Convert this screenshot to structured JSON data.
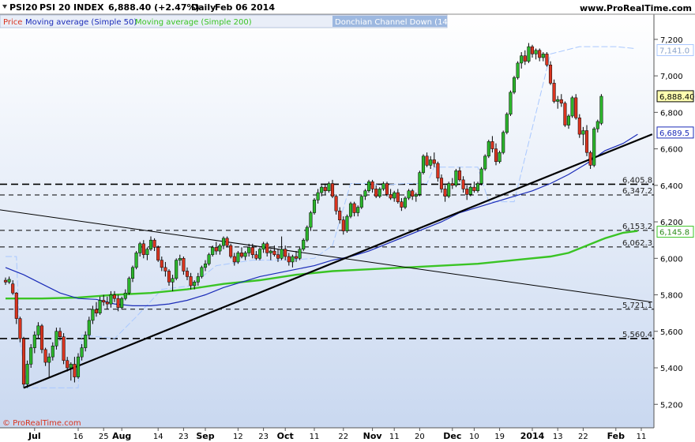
{
  "header": {
    "symbol": "PSI20",
    "name": "PSI 20 INDEX",
    "quote": "6,888.40 (+2.47%)",
    "period": "Daily",
    "date": "Feb 06 2014",
    "site": "www.ProRealTime.com",
    "copyright": "© ProRealTime.com"
  },
  "legend": {
    "price": "Price",
    "ma50": "Moving average (Simple 50)",
    "ma200": "Moving average (Simple 200)",
    "donchian": "Donchian Channel Down (14)"
  },
  "colors": {
    "up": "#2cb52c",
    "down": "#d9341f",
    "ma50": "#1a2bb8",
    "ma200": "#3ac424",
    "donchian": "#a9c8ff",
    "trend": "#000000",
    "price_box": "#ffffb0"
  },
  "chart_data": {
    "type": "candlestick",
    "ylim": [
      5080,
      7260
    ],
    "y_ticks": [
      "7,200",
      "7,000",
      "6,800",
      "6,600",
      "6,400",
      "6,200",
      "6,000",
      "5,800",
      "5,600",
      "5,400",
      "5,200"
    ],
    "x_ticks": [
      {
        "label": "Jul",
        "bar": 8,
        "bold": true
      },
      {
        "label": "16",
        "bar": 20
      },
      {
        "label": "25",
        "bar": 27
      },
      {
        "label": "Aug",
        "bar": 32,
        "bold": true
      },
      {
        "label": "14",
        "bar": 42
      },
      {
        "label": "23",
        "bar": 49
      },
      {
        "label": "Sep",
        "bar": 55,
        "bold": true
      },
      {
        "label": "12",
        "bar": 64
      },
      {
        "label": "23",
        "bar": 71
      },
      {
        "label": "Oct",
        "bar": 77,
        "bold": true
      },
      {
        "label": "11",
        "bar": 85
      },
      {
        "label": "22",
        "bar": 93
      },
      {
        "label": "Nov",
        "bar": 101,
        "bold": true
      },
      {
        "label": "11",
        "bar": 107
      },
      {
        "label": "20",
        "bar": 114
      },
      {
        "label": "Dec",
        "bar": 123,
        "bold": true
      },
      {
        "label": "10",
        "bar": 129
      },
      {
        "label": "19",
        "bar": 136
      },
      {
        "label": "2014",
        "bar": 145,
        "bold": true
      },
      {
        "label": "13",
        "bar": 152
      },
      {
        "label": "22",
        "bar": 159
      },
      {
        "label": "Feb",
        "bar": 168,
        "bold": true
      },
      {
        "label": "11",
        "bar": 175
      }
    ],
    "ohlc": [
      [
        5880,
        5895,
        5855,
        5870
      ],
      [
        5870,
        5900,
        5860,
        5885
      ],
      [
        5860,
        5880,
        5800,
        5810
      ],
      [
        5810,
        5815,
        5640,
        5670
      ],
      [
        5670,
        5680,
        5540,
        5560
      ],
      [
        5560,
        5570,
        5290,
        5310
      ],
      [
        5310,
        5440,
        5290,
        5420
      ],
      [
        5420,
        5530,
        5400,
        5510
      ],
      [
        5510,
        5600,
        5480,
        5580
      ],
      [
        5580,
        5650,
        5560,
        5630
      ],
      [
        5630,
        5640,
        5480,
        5500
      ],
      [
        5500,
        5510,
        5410,
        5430
      ],
      [
        5430,
        5480,
        5350,
        5460
      ],
      [
        5460,
        5540,
        5440,
        5520
      ],
      [
        5520,
        5620,
        5500,
        5600
      ],
      [
        5600,
        5620,
        5550,
        5570
      ],
      [
        5570,
        5590,
        5420,
        5440
      ],
      [
        5440,
        5460,
        5380,
        5400
      ],
      [
        5400,
        5430,
        5330,
        5420
      ],
      [
        5420,
        5460,
        5320,
        5350
      ],
      [
        5350,
        5480,
        5340,
        5460
      ],
      [
        5460,
        5530,
        5440,
        5510
      ],
      [
        5510,
        5600,
        5490,
        5580
      ],
      [
        5580,
        5680,
        5560,
        5660
      ],
      [
        5660,
        5740,
        5640,
        5720
      ],
      [
        5720,
        5760,
        5680,
        5700
      ],
      [
        5700,
        5790,
        5690,
        5770
      ],
      [
        5770,
        5800,
        5740,
        5760
      ],
      [
        5760,
        5790,
        5720,
        5750
      ],
      [
        5750,
        5820,
        5730,
        5800
      ],
      [
        5800,
        5820,
        5760,
        5780
      ],
      [
        5780,
        5800,
        5710,
        5730
      ],
      [
        5730,
        5790,
        5720,
        5780
      ],
      [
        5780,
        5830,
        5770,
        5810
      ],
      [
        5810,
        5900,
        5800,
        5890
      ],
      [
        5890,
        5960,
        5870,
        5950
      ],
      [
        5950,
        6040,
        5940,
        6030
      ],
      [
        6030,
        6090,
        6010,
        6080
      ],
      [
        6080,
        6100,
        6000,
        6020
      ],
      [
        6020,
        6060,
        5990,
        6050
      ],
      [
        6050,
        6120,
        6040,
        6100
      ],
      [
        6100,
        6110,
        6040,
        6060
      ],
      [
        6060,
        6070,
        5980,
        5990
      ],
      [
        5990,
        6010,
        5930,
        5950
      ],
      [
        5950,
        5980,
        5900,
        5930
      ],
      [
        5930,
        5940,
        5850,
        5870
      ],
      [
        5870,
        5910,
        5820,
        5890
      ],
      [
        5890,
        6000,
        5880,
        5990
      ],
      [
        5990,
        6020,
        5960,
        6000
      ],
      [
        6000,
        6010,
        5910,
        5930
      ],
      [
        5930,
        5950,
        5880,
        5900
      ],
      [
        5900,
        5920,
        5830,
        5850
      ],
      [
        5850,
        5880,
        5830,
        5870
      ],
      [
        5870,
        5920,
        5850,
        5900
      ],
      [
        5900,
        5960,
        5890,
        5950
      ],
      [
        5950,
        5990,
        5930,
        5970
      ],
      [
        5970,
        6030,
        5960,
        6020
      ],
      [
        6020,
        6070,
        6010,
        6060
      ],
      [
        6060,
        6090,
        6020,
        6040
      ],
      [
        6040,
        6080,
        6020,
        6070
      ],
      [
        6070,
        6120,
        6050,
        6110
      ],
      [
        6110,
        6120,
        6060,
        6070
      ],
      [
        6070,
        6080,
        6000,
        6010
      ],
      [
        6010,
        6030,
        5960,
        5980
      ],
      [
        5980,
        6040,
        5970,
        6030
      ],
      [
        6030,
        6060,
        6000,
        6010
      ],
      [
        6010,
        6040,
        5990,
        6030
      ],
      [
        6030,
        6080,
        6010,
        6060
      ],
      [
        6060,
        6080,
        6000,
        6020
      ],
      [
        6020,
        6040,
        5990,
        6000
      ],
      [
        6000,
        6060,
        5990,
        6050
      ],
      [
        6050,
        6090,
        6030,
        6080
      ],
      [
        6080,
        6090,
        6010,
        6030
      ],
      [
        6030,
        6050,
        5990,
        6040
      ],
      [
        6040,
        6070,
        6010,
        6020
      ],
      [
        6020,
        6050,
        5980,
        6000
      ],
      [
        6000,
        6120,
        5990,
        6050
      ],
      [
        6050,
        6070,
        5990,
        6010
      ],
      [
        6010,
        6030,
        5960,
        5980
      ],
      [
        5980,
        6020,
        5950,
        6010
      ],
      [
        6010,
        6040,
        5980,
        6000
      ],
      [
        6000,
        6060,
        5990,
        6050
      ],
      [
        6050,
        6110,
        6040,
        6100
      ],
      [
        6100,
        6180,
        6090,
        6170
      ],
      [
        6170,
        6260,
        6150,
        6250
      ],
      [
        6250,
        6330,
        6240,
        6320
      ],
      [
        6320,
        6380,
        6300,
        6360
      ],
      [
        6360,
        6400,
        6340,
        6390
      ],
      [
        6390,
        6410,
        6350,
        6370
      ],
      [
        6370,
        6420,
        6360,
        6410
      ],
      [
        6410,
        6430,
        6330,
        6340
      ],
      [
        6340,
        6350,
        6240,
        6260
      ],
      [
        6260,
        6280,
        6190,
        6210
      ],
      [
        6210,
        6230,
        6130,
        6150
      ],
      [
        6150,
        6240,
        6140,
        6230
      ],
      [
        6230,
        6310,
        6220,
        6300
      ],
      [
        6300,
        6310,
        6230,
        6250
      ],
      [
        6250,
        6290,
        6230,
        6280
      ],
      [
        6280,
        6350,
        6270,
        6340
      ],
      [
        6340,
        6380,
        6320,
        6370
      ],
      [
        6370,
        6430,
        6360,
        6420
      ],
      [
        6420,
        6430,
        6360,
        6380
      ],
      [
        6380,
        6400,
        6330,
        6340
      ],
      [
        6340,
        6390,
        6330,
        6380
      ],
      [
        6380,
        6420,
        6370,
        6410
      ],
      [
        6410,
        6420,
        6340,
        6350
      ],
      [
        6350,
        6380,
        6320,
        6330
      ],
      [
        6330,
        6370,
        6310,
        6360
      ],
      [
        6360,
        6380,
        6300,
        6310
      ],
      [
        6310,
        6330,
        6260,
        6280
      ],
      [
        6280,
        6340,
        6270,
        6330
      ],
      [
        6330,
        6380,
        6320,
        6370
      ],
      [
        6370,
        6380,
        6320,
        6340
      ],
      [
        6340,
        6360,
        6310,
        6350
      ],
      [
        6350,
        6480,
        6340,
        6470
      ],
      [
        6470,
        6570,
        6460,
        6560
      ],
      [
        6560,
        6580,
        6500,
        6510
      ],
      [
        6510,
        6560,
        6490,
        6540
      ],
      [
        6540,
        6580,
        6500,
        6520
      ],
      [
        6520,
        6530,
        6420,
        6440
      ],
      [
        6440,
        6460,
        6360,
        6380
      ],
      [
        6380,
        6400,
        6310,
        6340
      ],
      [
        6340,
        6420,
        6330,
        6410
      ],
      [
        6410,
        6440,
        6380,
        6400
      ],
      [
        6400,
        6490,
        6390,
        6480
      ],
      [
        6480,
        6500,
        6420,
        6430
      ],
      [
        6430,
        6450,
        6360,
        6380
      ],
      [
        6380,
        6400,
        6320,
        6350
      ],
      [
        6350,
        6400,
        6340,
        6390
      ],
      [
        6390,
        6420,
        6360,
        6370
      ],
      [
        6370,
        6420,
        6360,
        6410
      ],
      [
        6410,
        6500,
        6400,
        6490
      ],
      [
        6490,
        6570,
        6480,
        6560
      ],
      [
        6560,
        6650,
        6550,
        6640
      ],
      [
        6640,
        6670,
        6580,
        6600
      ],
      [
        6600,
        6630,
        6510,
        6530
      ],
      [
        6530,
        6590,
        6520,
        6580
      ],
      [
        6580,
        6700,
        6570,
        6690
      ],
      [
        6690,
        6800,
        6680,
        6790
      ],
      [
        6790,
        6920,
        6780,
        6910
      ],
      [
        6910,
        7000,
        6900,
        6990
      ],
      [
        6990,
        7080,
        6980,
        7070
      ],
      [
        7070,
        7130,
        7040,
        7110
      ],
      [
        7110,
        7140,
        7060,
        7080
      ],
      [
        7080,
        7180,
        7070,
        7160
      ],
      [
        7160,
        7170,
        7100,
        7120
      ],
      [
        7120,
        7150,
        7090,
        7140
      ],
      [
        7140,
        7150,
        7080,
        7100
      ],
      [
        7100,
        7130,
        7080,
        7120
      ],
      [
        7120,
        7130,
        7050,
        7060
      ],
      [
        7060,
        7080,
        6950,
        6960
      ],
      [
        6960,
        6980,
        6850,
        6860
      ],
      [
        6860,
        6890,
        6820,
        6870
      ],
      [
        6870,
        6900,
        6830,
        6850
      ],
      [
        6850,
        6860,
        6720,
        6730
      ],
      [
        6730,
        6790,
        6710,
        6780
      ],
      [
        6780,
        6890,
        6770,
        6880
      ],
      [
        6880,
        6900,
        6760,
        6770
      ],
      [
        6770,
        6790,
        6660,
        6680
      ],
      [
        6680,
        6720,
        6620,
        6700
      ],
      [
        6700,
        6730,
        6560,
        6580
      ],
      [
        6580,
        6590,
        6490,
        6510
      ],
      [
        6510,
        6720,
        6500,
        6710
      ],
      [
        6710,
        6760,
        6690,
        6750
      ],
      [
        6740,
        6900,
        6730,
        6888
      ]
    ],
    "ma50": [
      [
        0,
        5950
      ],
      [
        5,
        5910
      ],
      [
        10,
        5860
      ],
      [
        15,
        5810
      ],
      [
        20,
        5780
      ],
      [
        25,
        5775
      ],
      [
        30,
        5750
      ],
      [
        35,
        5740
      ],
      [
        40,
        5740
      ],
      [
        45,
        5750
      ],
      [
        50,
        5770
      ],
      [
        55,
        5800
      ],
      [
        60,
        5840
      ],
      [
        65,
        5870
      ],
      [
        70,
        5900
      ],
      [
        75,
        5920
      ],
      [
        80,
        5940
      ],
      [
        85,
        5960
      ],
      [
        90,
        5990
      ],
      [
        95,
        6010
      ],
      [
        100,
        6040
      ],
      [
        105,
        6080
      ],
      [
        110,
        6120
      ],
      [
        115,
        6160
      ],
      [
        120,
        6200
      ],
      [
        125,
        6250
      ],
      [
        130,
        6280
      ],
      [
        135,
        6310
      ],
      [
        140,
        6340
      ],
      [
        145,
        6370
      ],
      [
        150,
        6410
      ],
      [
        155,
        6460
      ],
      [
        160,
        6520
      ],
      [
        165,
        6590
      ],
      [
        170,
        6630
      ],
      [
        174,
        6680
      ]
    ],
    "ma200": [
      [
        0,
        5780
      ],
      [
        10,
        5780
      ],
      [
        20,
        5785
      ],
      [
        30,
        5800
      ],
      [
        40,
        5810
      ],
      [
        50,
        5830
      ],
      [
        60,
        5860
      ],
      [
        70,
        5880
      ],
      [
        80,
        5910
      ],
      [
        90,
        5930
      ],
      [
        100,
        5940
      ],
      [
        110,
        5950
      ],
      [
        120,
        5960
      ],
      [
        130,
        5970
      ],
      [
        140,
        5990
      ],
      [
        150,
        6010
      ],
      [
        155,
        6030
      ],
      [
        160,
        6070
      ],
      [
        165,
        6110
      ],
      [
        170,
        6140
      ],
      [
        174,
        6150
      ]
    ],
    "donchian": [
      [
        0,
        6010
      ],
      [
        3,
        6010
      ],
      [
        4,
        5540
      ],
      [
        6,
        5290
      ],
      [
        20,
        5290
      ],
      [
        21,
        5580
      ],
      [
        30,
        5560
      ],
      [
        36,
        5680
      ],
      [
        43,
        5830
      ],
      [
        51,
        5850
      ],
      [
        58,
        5960
      ],
      [
        68,
        5990
      ],
      [
        78,
        5990
      ],
      [
        85,
        6000
      ],
      [
        90,
        6070
      ],
      [
        95,
        6410
      ],
      [
        100,
        6410
      ],
      [
        103,
        6400
      ],
      [
        110,
        6410
      ],
      [
        116,
        6410
      ],
      [
        118,
        6500
      ],
      [
        130,
        6500
      ],
      [
        133,
        6310
      ],
      [
        140,
        6310
      ],
      [
        150,
        7120
      ],
      [
        158,
        7160
      ],
      [
        168,
        7160
      ],
      [
        173,
        7150
      ]
    ],
    "trendlines": [
      {
        "from": [
          5,
          5290
        ],
        "to": [
          178,
          6680
        ],
        "bold": true
      },
      {
        "from": [
          -3,
          6270
        ],
        "to": [
          178,
          5760
        ],
        "bold": false
      }
    ],
    "h_levels": [
      {
        "value": 6405.8,
        "label": "6,405.8",
        "style": "dash-bold"
      },
      {
        "value": 6347.2,
        "label": "6,347.2",
        "style": "dash"
      },
      {
        "value": 6153.2,
        "label": "6,153.2",
        "style": "dash"
      },
      {
        "value": 6062.3,
        "label": "6,062.3",
        "style": "dash"
      },
      {
        "value": 5721.1,
        "label": "5,721.1",
        "style": "dash"
      },
      {
        "value": 5560.4,
        "label": "5,560.4",
        "style": "dash-bold"
      }
    ],
    "price_labels": [
      {
        "value": 7141.0,
        "label": "7,141.0",
        "kind": "donchian"
      },
      {
        "value": 6888.4,
        "label": "6,888.40",
        "kind": "price"
      },
      {
        "value": 6689.5,
        "label": "6,689.5",
        "kind": "ma50"
      },
      {
        "value": 6145.8,
        "label": "6,145.8",
        "kind": "ma200"
      }
    ]
  }
}
